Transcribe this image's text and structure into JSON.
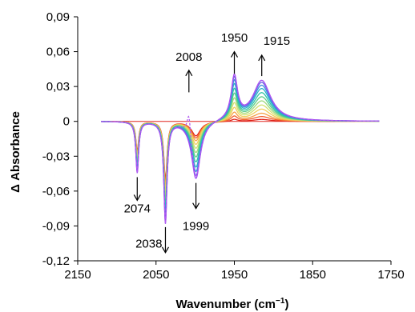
{
  "chart_data": {
    "type": "line",
    "xlabel_main": "Wavenumber (cm",
    "xlabel_sup": "−1",
    "xlabel_close": ")",
    "ylabel": "Δ Absorbance",
    "xlim": [
      2150,
      1750
    ],
    "ylim": [
      -0.12,
      0.09
    ],
    "x_reversed": true,
    "grid": false,
    "x_ticks": [
      {
        "value": 2150,
        "label": "2150"
      },
      {
        "value": 2050,
        "label": "2050"
      },
      {
        "value": 1950,
        "label": "1950"
      },
      {
        "value": 1850,
        "label": "1850"
      },
      {
        "value": 1750,
        "label": "1750"
      }
    ],
    "y_ticks": [
      {
        "value": 0.09,
        "label": "0,09"
      },
      {
        "value": 0.06,
        "label": "0,06"
      },
      {
        "value": 0.03,
        "label": "0,03"
      },
      {
        "value": 0.0,
        "label": "0"
      },
      {
        "value": -0.03,
        "label": "-0,03"
      },
      {
        "value": -0.06,
        "label": "-0,06"
      },
      {
        "value": -0.09,
        "label": "-0,09"
      },
      {
        "value": -0.12,
        "label": "-0,12"
      }
    ],
    "peaks": [
      {
        "center": 2074,
        "width": 2.2,
        "type": "negative",
        "amplitude": -0.044
      },
      {
        "center": 2038,
        "width": 2.5,
        "type": "negative",
        "amplitude": -0.087
      },
      {
        "center": 1999,
        "width": 7,
        "type": "negative",
        "amplitude": -0.05
      },
      {
        "center": 2008,
        "width": 3,
        "type": "dashed-only",
        "amplitude": 0.022
      },
      {
        "center": 1950,
        "width": 5,
        "type": "positive",
        "amplitude": 0.037
      },
      {
        "center": 1915,
        "width": 14,
        "type": "positive",
        "amplitude": 0.035
      }
    ],
    "x_range": [
      2120,
      1765
    ],
    "series": [
      {
        "color": "#e0241b",
        "scale": 0.05
      },
      {
        "color": "#f2612e",
        "scale": 0.12
      },
      {
        "color": "#f6a246",
        "scale": 0.2
      },
      {
        "color": "#f0cf5a",
        "scale": 0.3
      },
      {
        "color": "#d2e06e",
        "scale": 0.4
      },
      {
        "color": "#9ed97c",
        "scale": 0.5
      },
      {
        "color": "#5ccc8a",
        "scale": 0.6
      },
      {
        "color": "#2ec4a6",
        "scale": 0.7
      },
      {
        "color": "#2ab2c9",
        "scale": 0.8
      },
      {
        "color": "#3d8fe0",
        "scale": 0.88
      },
      {
        "color": "#6a63e6",
        "scale": 0.95
      },
      {
        "color": "#a050f0",
        "scale": 1.0
      }
    ],
    "dashed_series": {
      "color": "#b35cf0",
      "scale": 1.0
    },
    "annotations": [
      {
        "label": "2074",
        "x": 2074,
        "y": -0.058,
        "text_y": -0.0785,
        "direction": "down",
        "arrow_from": -0.048,
        "arrow_to": -0.068
      },
      {
        "label": "2038",
        "x": 2038,
        "y": -0.11,
        "text_y": -0.1085,
        "direction": "down",
        "arrow_from": -0.091,
        "arrow_to": -0.113,
        "text_side": "left"
      },
      {
        "label": "1999",
        "x": 1999,
        "y": -0.075,
        "text_y": -0.0935,
        "direction": "down",
        "arrow_from": -0.053,
        "arrow_to": -0.075
      },
      {
        "label": "2008",
        "x": 2008,
        "y": 0.045,
        "text_y": 0.052,
        "direction": "up",
        "arrow_from": 0.025,
        "arrow_to": 0.044
      },
      {
        "label": "1950",
        "x": 1950,
        "y": 0.065,
        "text_y": 0.0685,
        "direction": "up",
        "arrow_from": 0.041,
        "arrow_to": 0.06
      },
      {
        "label": "1915",
        "x": 1915,
        "y": 0.067,
        "text_y": 0.066,
        "direction": "none"
      },
      {
        "label": "",
        "x": 1915,
        "direction": "up",
        "arrow_from": 0.039,
        "arrow_to": 0.057
      }
    ]
  }
}
